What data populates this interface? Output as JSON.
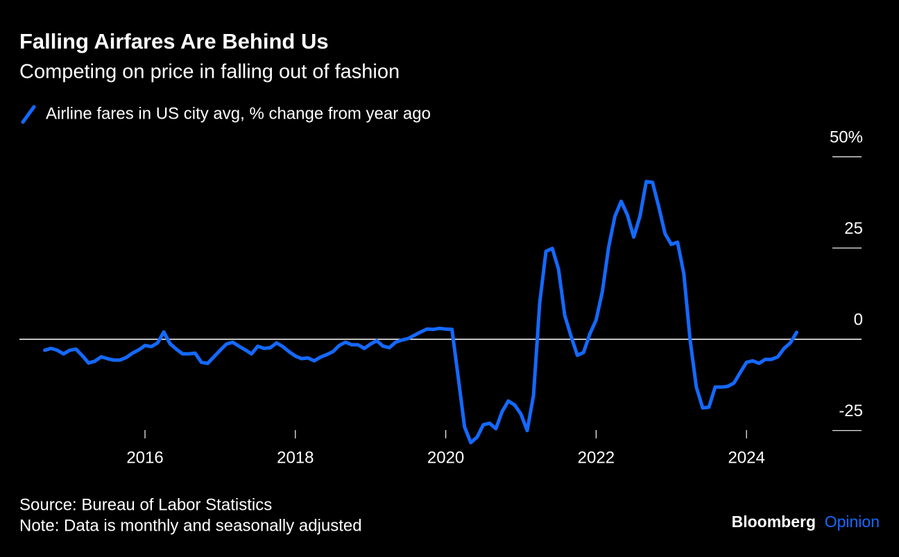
{
  "chart_data": {
    "type": "line",
    "title": "Falling Airfares Are Behind Us",
    "subtitle": "Competing on price in falling out of fashion",
    "source": "Source: Bureau of Labor Statistics",
    "note": "Note: Data is monthly and seasonally adjusted",
    "brand": [
      "Bloomberg",
      "Opinion"
    ],
    "x": [
      2014.667,
      2014.75,
      2014.833,
      2014.917,
      2015,
      2015.083,
      2015.167,
      2015.25,
      2015.333,
      2015.417,
      2015.5,
      2015.583,
      2015.667,
      2015.75,
      2015.833,
      2015.917,
      2016,
      2016.083,
      2016.167,
      2016.25,
      2016.333,
      2016.417,
      2016.5,
      2016.583,
      2016.667,
      2016.75,
      2016.833,
      2016.917,
      2017,
      2017.083,
      2017.167,
      2017.25,
      2017.333,
      2017.417,
      2017.5,
      2017.583,
      2017.667,
      2017.75,
      2017.833,
      2017.917,
      2018,
      2018.083,
      2018.167,
      2018.25,
      2018.333,
      2018.417,
      2018.5,
      2018.583,
      2018.667,
      2018.75,
      2018.833,
      2018.917,
      2019,
      2019.083,
      2019.167,
      2019.25,
      2019.333,
      2019.417,
      2019.5,
      2019.583,
      2019.667,
      2019.75,
      2019.833,
      2019.917,
      2020,
      2020.083,
      2020.167,
      2020.25,
      2020.333,
      2020.417,
      2020.5,
      2020.583,
      2020.667,
      2020.75,
      2020.833,
      2020.917,
      2021,
      2021.083,
      2021.167,
      2021.25,
      2021.333,
      2021.417,
      2021.5,
      2021.583,
      2021.667,
      2021.75,
      2021.833,
      2021.917,
      2022,
      2022.083,
      2022.167,
      2022.25,
      2022.333,
      2022.417,
      2022.5,
      2022.583,
      2022.667,
      2022.75,
      2022.833,
      2022.917,
      2023,
      2023.083,
      2023.167,
      2023.25,
      2023.333,
      2023.417,
      2023.5,
      2023.583,
      2023.667,
      2023.75,
      2023.833,
      2023.917,
      2024,
      2024.083,
      2024.167,
      2024.25,
      2024.333,
      2024.417,
      2024.5,
      2024.583,
      2024.667
    ],
    "series": [
      {
        "name": "Airline fares in US city avg, % change from year ago",
        "color": "#1469ff",
        "values": [
          -3,
          -2.5,
          -3,
          -4,
          -3,
          -2.7,
          -4.5,
          -6.5,
          -6,
          -4.8,
          -5.3,
          -5.7,
          -5.7,
          -5,
          -3.8,
          -2.9,
          -1.7,
          -2,
          -1,
          2,
          -1.2,
          -2.7,
          -4,
          -4,
          -3.8,
          -6.3,
          -6.6,
          -4.8,
          -3,
          -1.3,
          -0.8,
          -1.9,
          -2.9,
          -4,
          -1.9,
          -2.5,
          -2.3,
          -1,
          -2,
          -3.4,
          -4.6,
          -5.3,
          -5.1,
          -5.9,
          -4.9,
          -4.2,
          -3.4,
          -1.7,
          -0.8,
          -1.5,
          -1.5,
          -2.5,
          -1.3,
          -0.4,
          -1.9,
          -2.3,
          -0.8,
          -0.2,
          0.2,
          1.1,
          2,
          2.8,
          2.7,
          3,
          2.8,
          2.7,
          -10.6,
          -24,
          -28.3,
          -26.8,
          -23.4,
          -23,
          -24.5,
          -19.8,
          -16.9,
          -18,
          -20.5,
          -25,
          -15.4,
          10,
          24.1,
          24.9,
          19.2,
          6.5,
          0.8,
          -4.4,
          -3.6,
          1.5,
          5.3,
          13.1,
          25.3,
          33.7,
          37.8,
          34,
          28,
          33.7,
          43.2,
          43,
          36.3,
          28.9,
          26,
          26.6,
          17.9,
          -0.2,
          -13.1,
          -18.8,
          -18.6,
          -13.1,
          -13.1,
          -12.9,
          -12,
          -9.1,
          -6.3,
          -5.9,
          -6.6,
          -5.5,
          -5.5,
          -4.8,
          -2.5,
          -1,
          1.9
        ]
      }
    ],
    "xlim": [
      2014.33,
      2025.53
    ],
    "xticks": [
      2016,
      2018,
      2020,
      2022,
      2024
    ],
    "ylim": [
      -30,
      50
    ],
    "yticks": [
      {
        "value": 50,
        "label": "50%"
      },
      25,
      0,
      -25
    ]
  }
}
